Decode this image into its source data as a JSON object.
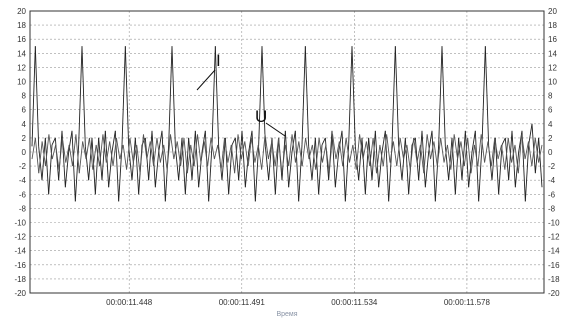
{
  "chart_data": {
    "type": "line",
    "xlabel": "Время",
    "ylabel": "",
    "ylim": [
      -20,
      20
    ],
    "y_ticks": [
      -20,
      -18,
      -16,
      -14,
      -12,
      -10,
      -8,
      -6,
      -4,
      -2,
      0,
      2,
      4,
      6,
      8,
      10,
      12,
      14,
      16,
      18,
      20
    ],
    "x_tick_labels": [
      "00:00:11.448",
      "00:00:11.491",
      "00:00:11.534",
      "00:00:11.578"
    ],
    "grid": true,
    "annotations": [
      {
        "text": "I",
        "series": "I"
      },
      {
        "text": "U",
        "series": "U"
      }
    ],
    "series": [
      {
        "name": "I",
        "color": "#222222",
        "values": [
          0.8,
          15,
          0.8,
          -4,
          2,
          -6,
          1,
          2,
          -4,
          3,
          -5,
          0,
          3,
          -7,
          1,
          15,
          0.8,
          -4,
          2,
          -6,
          2,
          -4,
          3,
          -5,
          0,
          3,
          -7,
          1,
          15,
          0.8,
          -4,
          2,
          -6,
          1,
          2,
          -4,
          3,
          -5,
          0,
          3,
          -7,
          1,
          15,
          0.8,
          -4,
          2,
          -6,
          2,
          -4,
          3,
          -5,
          0,
          3,
          -7,
          1,
          15,
          0.8,
          -4,
          2,
          -6,
          1,
          2,
          -4,
          3,
          -5,
          0,
          3,
          -7,
          1,
          15,
          0.8,
          -4,
          2,
          -6,
          2,
          -4,
          3,
          -5,
          0,
          3,
          -7,
          1,
          15,
          0.8,
          -4,
          2,
          -6,
          1,
          2,
          -4,
          3,
          -5,
          0,
          3,
          -7,
          1,
          15,
          0.8,
          -4,
          2,
          -6,
          2,
          -4,
          3,
          -5,
          0,
          3,
          -7,
          1,
          15,
          0.8,
          -4,
          2,
          -6,
          1,
          2,
          -4,
          3,
          -5,
          0,
          3,
          -7,
          1,
          15,
          0.8,
          -4,
          2,
          -6,
          2,
          -4,
          3,
          -5,
          0,
          3,
          -7,
          1,
          15,
          0.8,
          -4,
          2,
          -6,
          1,
          2,
          -4,
          3,
          -5,
          0,
          3,
          -7,
          1,
          4,
          -3,
          2,
          -5
        ]
      },
      {
        "name": "U",
        "color": "#555555",
        "values": [
          -1,
          2,
          -3,
          1.5,
          -2,
          2.5,
          -1,
          1,
          -2.5,
          2,
          -1.5,
          1,
          -2,
          2.5,
          -3,
          1.5,
          -1,
          2,
          -2.5,
          1,
          -2,
          2.5,
          -1.5,
          1.5,
          -2,
          2,
          -1,
          1,
          -2.5,
          2,
          -1.5,
          1,
          -3,
          2.5,
          -1,
          1.5,
          -2,
          2,
          -1.5,
          1,
          -2.5,
          2.5,
          -1,
          1.5,
          -2,
          2,
          -3,
          1,
          -2,
          2.5,
          -1.5,
          1.5,
          -2,
          2,
          -1,
          1,
          -2.5,
          2,
          -1.5,
          1,
          -3,
          2.5,
          -1,
          1.5,
          -2,
          2,
          -1.5,
          1,
          -2.5,
          2.5,
          -1,
          1.5,
          -2,
          2,
          -3,
          1,
          -2,
          2.5,
          -1.5,
          1.5,
          -2,
          2,
          -1,
          1,
          -2.5,
          2,
          -1.5,
          1,
          -3,
          2.5,
          -1,
          1.5,
          -2,
          2,
          -1.5,
          1,
          -2.5,
          2.5,
          -1,
          1.5,
          -2,
          2,
          -3,
          1,
          -2,
          2.5,
          -1.5,
          1.5,
          -2,
          2,
          -1,
          1,
          -2.5,
          2,
          -1.5,
          1,
          -3,
          2.5,
          -1,
          1.5,
          -2,
          2,
          -1.5,
          1,
          -2.5,
          2.5,
          -1,
          1.5,
          -2,
          2,
          -3,
          1,
          -2,
          2.5,
          -1.5,
          1.5,
          -2,
          2,
          -1,
          1,
          -2.5,
          2,
          -1.5,
          1,
          -3,
          2.5,
          -1,
          1.5,
          -2,
          2,
          -1.5,
          1
        ]
      }
    ]
  }
}
